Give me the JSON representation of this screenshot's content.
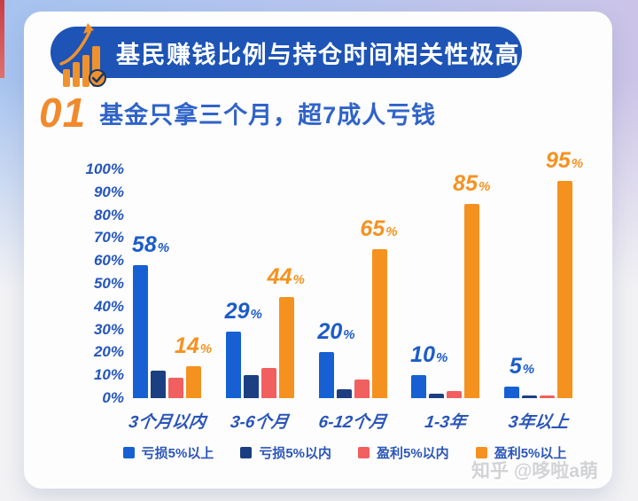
{
  "header": {
    "title": "基民赚钱比例与持仓时间相关性极高"
  },
  "section": {
    "number": "01",
    "title": "基金只拿三个月，超7成人亏钱"
  },
  "chart_data": {
    "type": "bar",
    "title": "基民赚钱比例与持仓时间相关性极高",
    "categories": [
      "3个月以内",
      "3-6个月",
      "6-12个月",
      "1-3年",
      "3年以上"
    ],
    "series": [
      {
        "name": "亏损5%以上",
        "color": "#1660D4",
        "label_color": "#1B5CC9",
        "show_labels": true,
        "values": [
          58,
          29,
          20,
          10,
          5
        ]
      },
      {
        "name": "亏损5%以内",
        "color": "#1B3F80",
        "show_labels": false,
        "values": [
          12,
          10,
          4,
          2,
          1
        ]
      },
      {
        "name": "盈利5%以内",
        "color": "#F25F5F",
        "show_labels": false,
        "values": [
          9,
          13,
          8,
          3,
          1
        ]
      },
      {
        "name": "盈利5%以上",
        "color": "#F5921F",
        "label_color": "#F5921F",
        "show_labels": true,
        "values": [
          14,
          44,
          65,
          85,
          95
        ]
      }
    ],
    "yticks": [
      "100%",
      "90%",
      "80%",
      "70%",
      "60%",
      "50%",
      "40%",
      "30%",
      "20%",
      "10%",
      "0%"
    ],
    "ylim": [
      0,
      100
    ],
    "grid": false,
    "legend_position": "bottom"
  },
  "colors": {
    "banner_bg": "#1D54B6",
    "banner_text": "#FFFFFF",
    "accent_orange": "#F18A2C",
    "heading_blue": "#2F63C8",
    "axis_blue": "#2456BB",
    "card_bg": "#FDFDFE"
  },
  "watermark": {
    "text": "知乎 @哆啦a萌"
  }
}
